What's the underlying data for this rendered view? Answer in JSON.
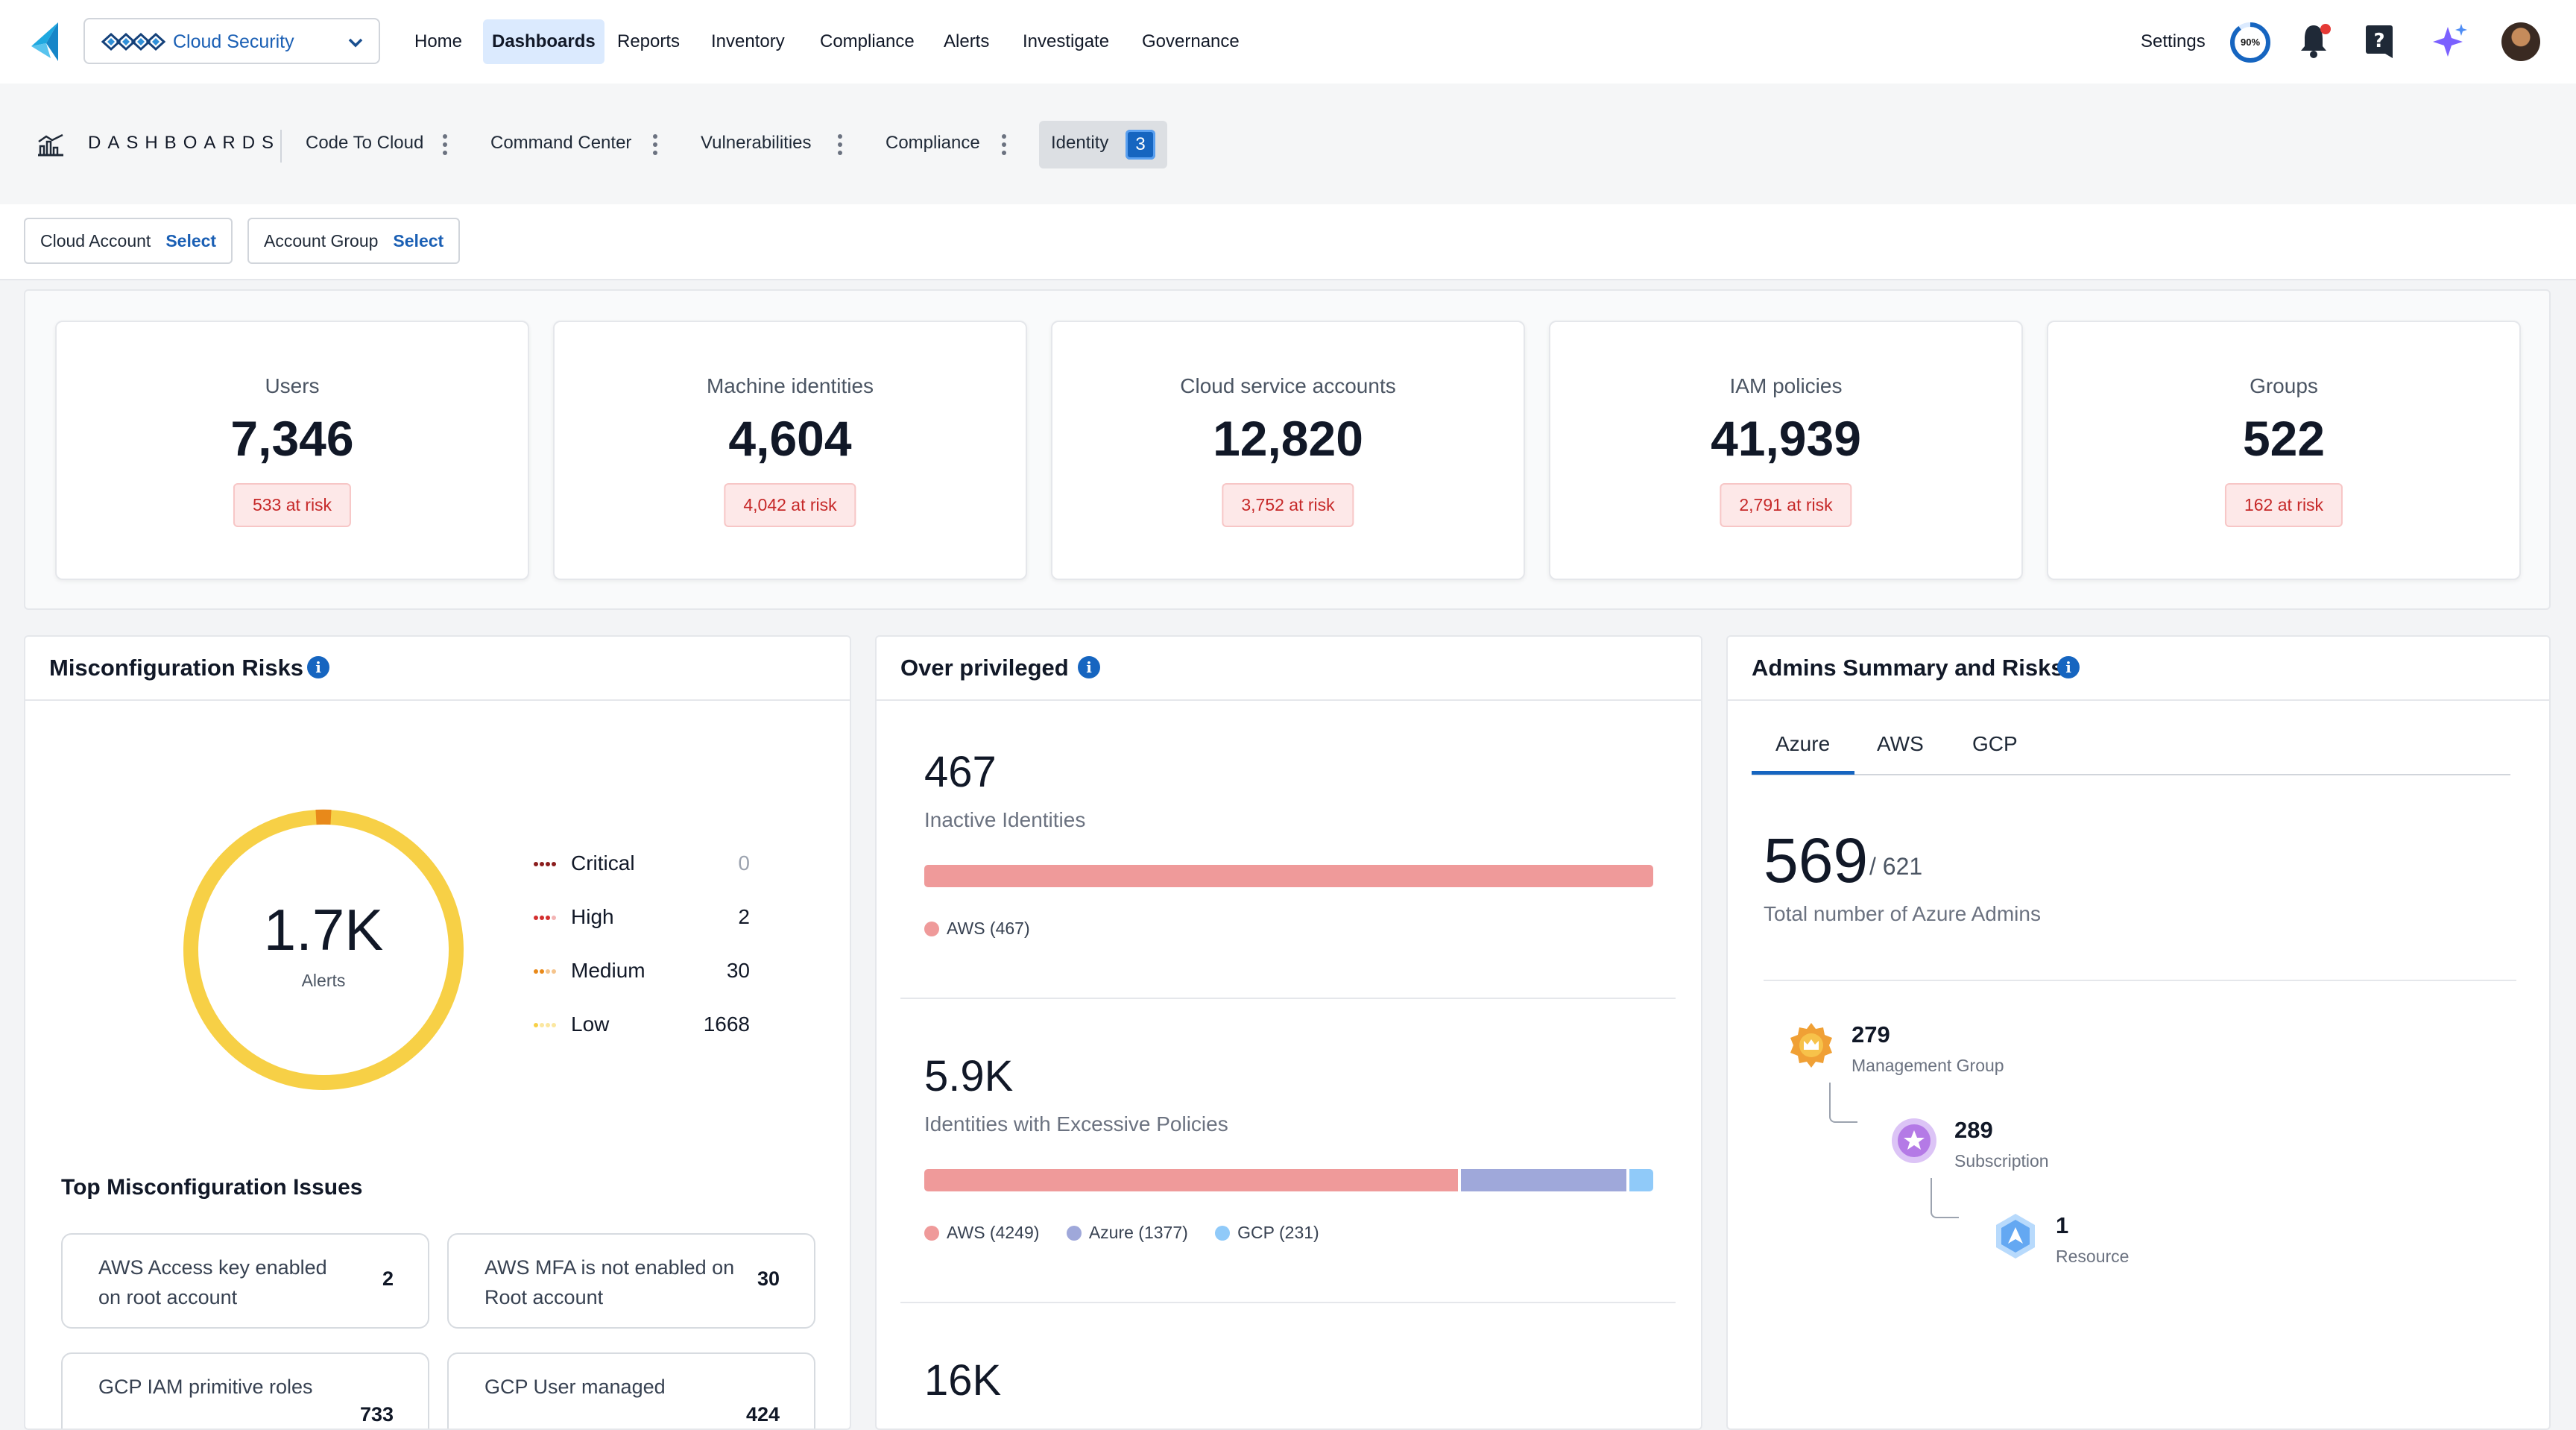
{
  "product": {
    "name": "Cloud Security"
  },
  "nav": {
    "items": [
      "Home",
      "Dashboards",
      "Reports",
      "Inventory",
      "Compliance",
      "Alerts",
      "Investigate",
      "Governance"
    ],
    "active": "Dashboards"
  },
  "top_right": {
    "settings": "Settings",
    "progress": "90%",
    "progress_value": 0.9
  },
  "dashboards": {
    "label": "DASHBOARDS",
    "tabs": [
      "Code To Cloud",
      "Command Center",
      "Vulnerabilities",
      "Compliance"
    ],
    "active_tab": {
      "label": "Identity",
      "badge": "3"
    }
  },
  "filters": [
    {
      "label": "Cloud Account",
      "action": "Select"
    },
    {
      "label": "Account Group",
      "action": "Select"
    }
  ],
  "kpis": [
    {
      "title": "Users",
      "value": "7,346",
      "risk": "533 at risk"
    },
    {
      "title": "Machine identities",
      "value": "4,604",
      "risk": "4,042 at risk"
    },
    {
      "title": "Cloud service accounts",
      "value": "12,820",
      "risk": "3,752 at risk"
    },
    {
      "title": "IAM policies",
      "value": "41,939",
      "risk": "2,791 at risk"
    },
    {
      "title": "Groups",
      "value": "522",
      "risk": "162 at risk"
    }
  ],
  "misconfig": {
    "title": "Misconfiguration Risks",
    "total": "1.7K",
    "total_label": "Alerts",
    "severities": [
      {
        "name": "Critical",
        "count": "0",
        "color": "#8b1d1d"
      },
      {
        "name": "High",
        "count": "2",
        "color": "#d32f2f"
      },
      {
        "name": "Medium",
        "count": "30",
        "color": "#e8891a"
      },
      {
        "name": "Low",
        "count": "1668",
        "color": "#f7d046"
      }
    ],
    "top_title": "Top Misconfiguration Issues",
    "issues": [
      {
        "text": "AWS Access key enabled on root account",
        "count": "2"
      },
      {
        "text": "AWS MFA is not enabled on Root account",
        "count": "30"
      },
      {
        "text": "GCP IAM primitive roles",
        "count": "733"
      },
      {
        "text": "GCP User managed",
        "count": "424"
      }
    ]
  },
  "overprivileged": {
    "title": "Over privileged",
    "sections": [
      {
        "value": "467",
        "label": "Inactive Identities",
        "legend": [
          {
            "name": "AWS (467)",
            "color": "#ef9a9a"
          }
        ]
      },
      {
        "value": "5.9K",
        "label": "Identities with Excessive Policies",
        "legend": [
          {
            "name": "AWS (4249)",
            "color": "#ef9a9a"
          },
          {
            "name": "Azure (1377)",
            "color": "#9fa8da"
          },
          {
            "name": "GCP (231)",
            "color": "#90caf9"
          }
        ]
      },
      {
        "value": "16K"
      }
    ]
  },
  "admins": {
    "title": "Admins Summary and Risks",
    "tabs": [
      "Azure",
      "AWS",
      "GCP"
    ],
    "active_tab": "Azure",
    "count": "569",
    "total": "/ 621",
    "label": "Total number of Azure Admins",
    "tree": [
      {
        "value": "279",
        "label": "Management Group",
        "color": "#f0a035"
      },
      {
        "value": "289",
        "label": "Subscription",
        "color": "#b47ae6"
      },
      {
        "value": "1",
        "label": "Resource",
        "color": "#64a8f2"
      }
    ]
  }
}
